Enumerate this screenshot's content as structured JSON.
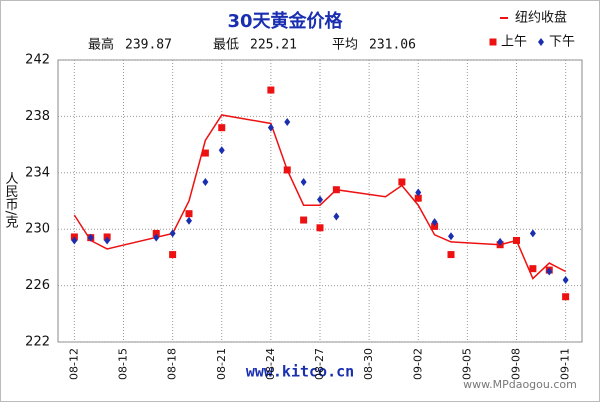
{
  "chart_data": {
    "type": "line",
    "title": "30天黄金价格",
    "stats": [
      {
        "label": "最高",
        "value": 239.87
      },
      {
        "label": "最低",
        "value": 225.21
      },
      {
        "label": "平均",
        "value": 231.06
      }
    ],
    "y_label": "人民币/克",
    "annotation": "www.kitco.cn",
    "watermark": "www.MPdaogou.com",
    "xlim": [
      "08-11",
      "09-12"
    ],
    "xticks": [
      "08-12",
      "08-15",
      "08-18",
      "08-21",
      "08-24",
      "08-27",
      "08-30",
      "09-02",
      "09-05",
      "09-08",
      "09-11"
    ],
    "ylim": [
      222,
      242
    ],
    "yticks": [
      222,
      226,
      230,
      234,
      238,
      242
    ],
    "grid": true,
    "legend": "top-right",
    "series": [
      {
        "name": "纽约收盘",
        "kind": "line",
        "color": "#ee1111",
        "x": [
          "08-12",
          "08-13",
          "08-14",
          "08-18",
          "08-19",
          "08-20",
          "08-21",
          "08-24",
          "08-25",
          "08-26",
          "08-27",
          "08-28",
          "08-31",
          "09-01",
          "09-02",
          "09-03",
          "09-04",
          "09-07",
          "09-08",
          "09-09",
          "09-10",
          "09-11"
        ],
        "values": [
          231.0,
          229.2,
          228.6,
          229.7,
          232.0,
          236.3,
          238.1,
          237.5,
          234.2,
          231.7,
          231.7,
          232.8,
          232.3,
          233.1,
          231.7,
          229.6,
          229.1,
          228.9,
          229.2,
          226.5,
          227.6,
          227.0
        ]
      },
      {
        "name": "上午",
        "kind": "square",
        "color": "#ee1111",
        "x": [
          "08-12",
          "08-13",
          "08-14",
          "08-17",
          "08-18",
          "08-19",
          "08-20",
          "08-21",
          "08-24",
          "08-25",
          "08-26",
          "08-27",
          "08-28",
          "09-01",
          "09-02",
          "09-03",
          "09-04",
          "09-07",
          "09-08",
          "09-09",
          "09-10",
          "09-11"
        ],
        "values": [
          229.45,
          229.4,
          229.45,
          229.7,
          228.2,
          231.1,
          235.4,
          237.2,
          239.87,
          234.2,
          230.65,
          230.1,
          232.8,
          233.35,
          232.2,
          230.2,
          228.2,
          228.9,
          229.2,
          227.2,
          227.1,
          225.21
        ]
      },
      {
        "name": "下午",
        "kind": "diamond",
        "color": "#1a2fb0",
        "x": [
          "08-12",
          "08-13",
          "08-14",
          "08-17",
          "08-18",
          "08-19",
          "08-20",
          "08-21",
          "08-24",
          "08-25",
          "08-26",
          "08-27",
          "08-28",
          "09-02",
          "09-03",
          "09-04",
          "09-07",
          "09-09",
          "09-10",
          "09-11"
        ],
        "values": [
          229.2,
          229.4,
          229.2,
          229.4,
          229.7,
          230.6,
          233.35,
          235.6,
          237.2,
          237.6,
          233.35,
          232.1,
          230.9,
          232.6,
          230.5,
          229.5,
          229.1,
          229.7,
          227.0,
          226.4
        ]
      }
    ]
  }
}
